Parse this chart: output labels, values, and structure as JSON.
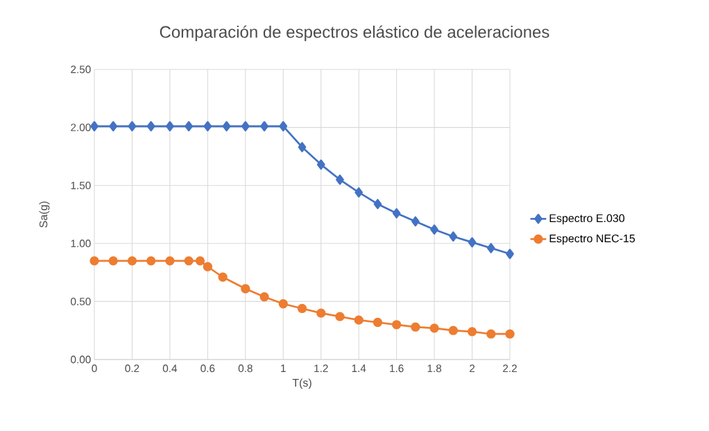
{
  "chart_data": {
    "type": "line",
    "title": "Comparación de espectros elástico de aceleraciones",
    "xlabel": "T(s)",
    "ylabel": "Sa(g)",
    "series": [
      {
        "name": "Espectro E.030",
        "color": "#4472c4",
        "marker": "diamond",
        "x": [
          0,
          0.1,
          0.2,
          0.3,
          0.4,
          0.5,
          0.6,
          0.7,
          0.8,
          0.9,
          1.0,
          1.1,
          1.2,
          1.3,
          1.4,
          1.5,
          1.6,
          1.7,
          1.8,
          1.9,
          2.0,
          2.1,
          2.2
        ],
        "values": [
          2.01,
          2.01,
          2.01,
          2.01,
          2.01,
          2.01,
          2.01,
          2.01,
          2.01,
          2.01,
          2.01,
          1.83,
          1.68,
          1.55,
          1.44,
          1.34,
          1.26,
          1.19,
          1.12,
          1.06,
          1.01,
          0.96,
          0.91
        ]
      },
      {
        "name": "Espectro NEC-15",
        "color": "#ed7d31",
        "marker": "circle",
        "x": [
          0,
          0.1,
          0.2,
          0.3,
          0.4,
          0.5,
          0.56,
          0.6,
          0.68,
          0.8,
          0.9,
          1.0,
          1.1,
          1.2,
          1.3,
          1.4,
          1.5,
          1.6,
          1.7,
          1.8,
          1.9,
          2.0,
          2.1,
          2.2
        ],
        "values": [
          0.85,
          0.85,
          0.85,
          0.85,
          0.85,
          0.85,
          0.85,
          0.8,
          0.71,
          0.61,
          0.54,
          0.48,
          0.44,
          0.4,
          0.37,
          0.34,
          0.32,
          0.3,
          0.28,
          0.27,
          0.25,
          0.24,
          0.22,
          0.22
        ]
      }
    ],
    "xlim": [
      0,
      2.2
    ],
    "ylim": [
      0,
      2.5
    ],
    "xticks": [
      0,
      0.2,
      0.4,
      0.6,
      0.8,
      1,
      1.2,
      1.4,
      1.6,
      1.8,
      2,
      2.2
    ],
    "yticks": [
      {
        "value": 0,
        "label": "0.00"
      },
      {
        "value": 0.5,
        "label": "0.50"
      },
      {
        "value": 1,
        "label": "1.00"
      },
      {
        "value": 1.5,
        "label": "1.50"
      },
      {
        "value": 2,
        "label": "2.00"
      },
      {
        "value": 2.5,
        "label": "2.50"
      }
    ],
    "grid": true,
    "legend": "right",
    "line_style": "solid"
  }
}
